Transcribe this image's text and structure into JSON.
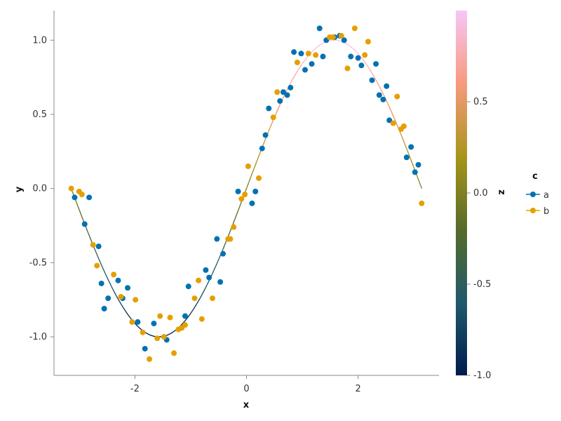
{
  "chart_data": {
    "type": "scatter",
    "xlabel": "x",
    "ylabel": "y",
    "xlim": [
      -3.45,
      3.45
    ],
    "ylim": [
      -1.26,
      1.2
    ],
    "x_ticks": [
      -2,
      0,
      2
    ],
    "y_ticks": [
      -1.0,
      -0.5,
      0.0,
      0.5,
      1.0
    ],
    "x_tick_labels": [
      "-2",
      "0",
      "2"
    ],
    "y_tick_labels": [
      "-1.0",
      "-0.5",
      "0.0",
      "0.5",
      "1.0"
    ],
    "grid": false,
    "legend": {
      "title": "c",
      "position": "right",
      "entries": [
        {
          "label": "a",
          "color": "#0072b2"
        },
        {
          "label": "b",
          "color": "#e69f00"
        }
      ]
    },
    "colorbar": {
      "label": "z",
      "range": [
        -1.0,
        1.0
      ],
      "ticks": [
        -1.0,
        -0.5,
        0.0,
        0.5
      ],
      "tick_labels": [
        "-1.0",
        "-0.5",
        "0.0",
        "0.5"
      ],
      "colormap": [
        "#001b4e",
        "#1f5a6b",
        "#576b2a",
        "#a8951a",
        "#f79a7e",
        "#f7c6f7"
      ]
    },
    "line": {
      "description": "y = sin(x), colored by z = sin(x)",
      "x_range": [
        -3.14,
        3.14
      ]
    },
    "series": [
      {
        "name": "a",
        "color": "#0072b2",
        "points": [
          [
            -3.08,
            -0.06
          ],
          [
            -2.9,
            -0.24
          ],
          [
            -2.82,
            -0.06
          ],
          [
            -2.65,
            -0.39
          ],
          [
            -2.6,
            -0.64
          ],
          [
            -2.55,
            -0.81
          ],
          [
            -2.48,
            -0.74
          ],
          [
            -2.3,
            -0.62
          ],
          [
            -2.22,
            -0.74
          ],
          [
            -2.13,
            -0.67
          ],
          [
            -1.95,
            -0.9
          ],
          [
            -1.82,
            -1.08
          ],
          [
            -1.66,
            -0.91
          ],
          [
            -1.43,
            -1.02
          ],
          [
            -1.1,
            -0.86
          ],
          [
            -1.04,
            -0.66
          ],
          [
            -0.73,
            -0.55
          ],
          [
            -0.67,
            -0.6
          ],
          [
            -0.53,
            -0.34
          ],
          [
            -0.47,
            -0.63
          ],
          [
            -0.42,
            -0.44
          ],
          [
            -0.15,
            -0.02
          ],
          [
            0.1,
            -0.1
          ],
          [
            0.16,
            -0.02
          ],
          [
            0.28,
            0.27
          ],
          [
            0.34,
            0.36
          ],
          [
            0.4,
            0.54
          ],
          [
            0.6,
            0.59
          ],
          [
            0.66,
            0.65
          ],
          [
            0.73,
            0.63
          ],
          [
            0.79,
            0.68
          ],
          [
            0.85,
            0.92
          ],
          [
            0.98,
            0.91
          ],
          [
            1.05,
            0.8
          ],
          [
            1.17,
            0.84
          ],
          [
            1.31,
            1.08
          ],
          [
            1.37,
            0.89
          ],
          [
            1.43,
            1.0
          ],
          [
            1.58,
            1.02
          ],
          [
            1.67,
            1.03
          ],
          [
            1.75,
            1.0
          ],
          [
            1.87,
            0.89
          ],
          [
            2.0,
            0.88
          ],
          [
            2.06,
            0.83
          ],
          [
            2.25,
            0.73
          ],
          [
            2.32,
            0.84
          ],
          [
            2.38,
            0.63
          ],
          [
            2.45,
            0.6
          ],
          [
            2.51,
            0.69
          ],
          [
            2.56,
            0.46
          ],
          [
            2.87,
            0.21
          ],
          [
            2.95,
            0.28
          ],
          [
            3.02,
            0.11
          ],
          [
            3.08,
            0.16
          ]
        ]
      },
      {
        "name": "b",
        "color": "#e69f00",
        "points": [
          [
            -3.14,
            0.0
          ],
          [
            -3.0,
            -0.02
          ],
          [
            -2.95,
            -0.04
          ],
          [
            -2.75,
            -0.38
          ],
          [
            -2.68,
            -0.52
          ],
          [
            -2.38,
            -0.58
          ],
          [
            -2.25,
            -0.73
          ],
          [
            -2.05,
            -0.9
          ],
          [
            -1.99,
            -0.75
          ],
          [
            -1.86,
            -0.97
          ],
          [
            -1.74,
            -1.15
          ],
          [
            -1.6,
            -1.01
          ],
          [
            -1.55,
            -0.86
          ],
          [
            -1.48,
            -1.0
          ],
          [
            -1.37,
            -0.87
          ],
          [
            -1.3,
            -1.11
          ],
          [
            -1.22,
            -0.95
          ],
          [
            -1.16,
            -0.94
          ],
          [
            -1.1,
            -0.92
          ],
          [
            -0.93,
            -0.74
          ],
          [
            -0.86,
            -0.62
          ],
          [
            -0.8,
            -0.88
          ],
          [
            -0.61,
            -0.74
          ],
          [
            -0.33,
            -0.34
          ],
          [
            -0.29,
            -0.34
          ],
          [
            -0.23,
            -0.26
          ],
          [
            -0.09,
            -0.07
          ],
          [
            -0.03,
            -0.04
          ],
          [
            0.03,
            0.15
          ],
          [
            0.22,
            0.07
          ],
          [
            0.48,
            0.48
          ],
          [
            0.55,
            0.65
          ],
          [
            0.91,
            0.85
          ],
          [
            1.11,
            0.91
          ],
          [
            1.24,
            0.9
          ],
          [
            1.49,
            1.02
          ],
          [
            1.55,
            1.02
          ],
          [
            1.7,
            1.03
          ],
          [
            1.81,
            0.81
          ],
          [
            1.94,
            1.08
          ],
          [
            2.12,
            0.9
          ],
          [
            2.18,
            0.99
          ],
          [
            2.63,
            0.44
          ],
          [
            2.7,
            0.62
          ],
          [
            2.77,
            0.4
          ],
          [
            2.82,
            0.42
          ],
          [
            3.14,
            -0.1
          ]
        ]
      }
    ]
  }
}
